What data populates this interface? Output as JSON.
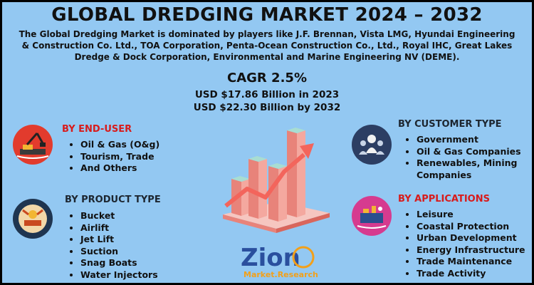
{
  "header": {
    "title": "GLOBAL DREDGING MARKET 2024 – 2032",
    "intro": "The Global Dredging Market is dominated by players like J.F. Brennan, Vista LMG, Hyundai Engineering & Construction Co. Ltd., TOA Corporation, Penta-Ocean Construction Co., Ltd., Royal IHC, Great Lakes Dredge & Dock Corporation, Environmental and Marine Engineering NV (DEME).",
    "cagr": "CAGR 2.5%",
    "value_2023": "USD $17.86 Billion in 2023",
    "value_2032": "USD $22.30 Billion  by 2032"
  },
  "end_user": {
    "title": "BY END-USER",
    "icon": "dredger-icon",
    "items": [
      "Oil & Gas (O&g)",
      "Tourism, Trade",
      "And Others"
    ]
  },
  "product_type": {
    "title": "BY PRODUCT TYPE",
    "icon": "dredging-equipment-icon",
    "items": [
      "Bucket",
      "Airlift",
      "Jet Lift",
      "Suction",
      "Snag Boats",
      "Water Injectors"
    ]
  },
  "customer_type": {
    "title": "BY CUSTOMER TYPE",
    "icon": "customers-icon",
    "items": [
      "Government",
      "Oil & Gas Companies",
      "Renewables, Mining Companies"
    ]
  },
  "applications": {
    "title": "BY APPLICATIONS",
    "icon": "harbor-icon",
    "items": [
      "Leisure",
      "Coastal Protection",
      "Urban Development",
      "Energy Infrastructure",
      "Trade Maintenance",
      "Trade Activity"
    ]
  },
  "logo": {
    "name": "Zion",
    "sub": "Market.Research"
  },
  "colors": {
    "background": "#93c8f2",
    "accent_red": "#d81b1b",
    "bar_top": "#a8ddd2",
    "bar_side": "#e8837a",
    "arrow": "#f3655c"
  }
}
